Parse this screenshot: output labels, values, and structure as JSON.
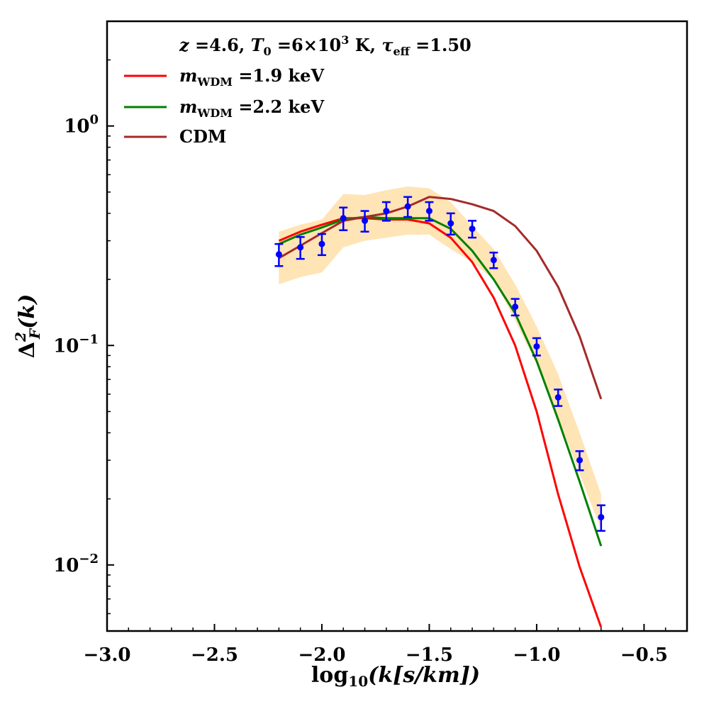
{
  "chart_data": {
    "type": "line",
    "title": "",
    "xlabel": {
      "main": "log",
      "sub": "10",
      "rest": "(k[s/km])"
    },
    "ylabel": {
      "main": "Δ",
      "sup": "2",
      "sub": "F",
      "rest": "(k)"
    },
    "xlim": [
      -3.0,
      -0.3
    ],
    "ylim": [
      0.005,
      3.0
    ],
    "yscale": "log",
    "x_ticks": [
      {
        "value": -3.0,
        "label": "−3.0"
      },
      {
        "value": -2.5,
        "label": "−2.5"
      },
      {
        "value": -2.0,
        "label": "−2.0"
      },
      {
        "value": -1.5,
        "label": "−1.5"
      },
      {
        "value": -1.0,
        "label": "−1.0"
      },
      {
        "value": -0.5,
        "label": "−0.5"
      }
    ],
    "y_ticks": [
      {
        "value": 0.01,
        "base": "10",
        "exp": "−2"
      },
      {
        "value": 0.1,
        "base": "10",
        "exp": "−1"
      },
      {
        "value": 1.0,
        "base": "10",
        "exp": "0"
      }
    ],
    "legend": {
      "position": "top-left",
      "header": {
        "parts": [
          "z",
          " =4.6, ",
          "T",
          "0",
          " =6×10",
          "3",
          " K, ",
          "τ",
          "eff",
          " =1.50"
        ]
      },
      "entries": [
        {
          "series": 0,
          "label_main": "m",
          "label_sub": "WDM",
          "label_rest": " =1.9 keV"
        },
        {
          "series": 1,
          "label_main": "m",
          "label_sub": "WDM",
          "label_rest": " =2.2 keV"
        },
        {
          "series": 2,
          "label_main": "CDM",
          "label_sub": "",
          "label_rest": ""
        }
      ]
    },
    "band": {
      "name": "uncertainty band",
      "color": "#ffe4b5",
      "x": [
        -2.2,
        -2.1,
        -2.0,
        -1.9,
        -1.8,
        -1.7,
        -1.6,
        -1.5,
        -1.4,
        -1.3,
        -1.2,
        -1.1,
        -1.0,
        -0.9,
        -0.8,
        -0.7
      ],
      "lower": [
        0.19,
        0.205,
        0.215,
        0.28,
        0.3,
        0.31,
        0.32,
        0.32,
        0.275,
        0.24,
        0.2,
        0.13,
        0.082,
        0.047,
        0.026,
        0.0145
      ],
      "upper": [
        0.33,
        0.355,
        0.375,
        0.49,
        0.485,
        0.51,
        0.53,
        0.52,
        0.45,
        0.35,
        0.275,
        0.19,
        0.122,
        0.074,
        0.04,
        0.021
      ]
    },
    "series": [
      {
        "name": "m_WDM = 1.9 keV",
        "color": "#ff0000",
        "x": [
          -2.2,
          -2.1,
          -2.0,
          -1.9,
          -1.8,
          -1.7,
          -1.6,
          -1.5,
          -1.4,
          -1.3,
          -1.2,
          -1.1,
          -1.0,
          -0.9,
          -0.8,
          -0.7
        ],
        "values": [
          0.3,
          0.33,
          0.355,
          0.38,
          0.38,
          0.375,
          0.375,
          0.36,
          0.31,
          0.24,
          0.165,
          0.1,
          0.05,
          0.021,
          0.0098,
          0.0052
        ]
      },
      {
        "name": "m_WDM = 2.2 keV",
        "color": "#008000",
        "x": [
          -2.2,
          -2.1,
          -2.0,
          -1.9,
          -1.8,
          -1.7,
          -1.6,
          -1.5,
          -1.4,
          -1.3,
          -1.2,
          -1.1,
          -1.0,
          -0.9,
          -0.8,
          -0.7
        ],
        "values": [
          0.29,
          0.32,
          0.345,
          0.375,
          0.385,
          0.38,
          0.38,
          0.38,
          0.34,
          0.27,
          0.2,
          0.14,
          0.085,
          0.046,
          0.024,
          0.0122
        ]
      },
      {
        "name": "CDM",
        "color": "#a52a2a",
        "x": [
          -2.2,
          -2.1,
          -2.0,
          -1.9,
          -1.8,
          -1.7,
          -1.6,
          -1.5,
          -1.4,
          -1.3,
          -1.2,
          -1.1,
          -1.0,
          -0.9,
          -0.8,
          -0.7
        ],
        "values": [
          0.25,
          0.285,
          0.325,
          0.37,
          0.385,
          0.4,
          0.43,
          0.475,
          0.465,
          0.44,
          0.41,
          0.35,
          0.27,
          0.185,
          0.11,
          0.057
        ]
      }
    ],
    "data_points": {
      "name": "measurements",
      "color": "#0000ff",
      "x": [
        -2.2,
        -2.1,
        -2.0,
        -1.9,
        -1.8,
        -1.7,
        -1.6,
        -1.5,
        -1.4,
        -1.3,
        -1.2,
        -1.1,
        -1.0,
        -0.9,
        -0.8,
        -0.7
      ],
      "y": [
        0.26,
        0.28,
        0.29,
        0.38,
        0.37,
        0.41,
        0.43,
        0.41,
        0.36,
        0.34,
        0.245,
        0.15,
        0.099,
        0.058,
        0.03,
        0.0165
      ],
      "y_err": [
        0.03,
        0.032,
        0.032,
        0.045,
        0.04,
        0.04,
        0.045,
        0.04,
        0.04,
        0.03,
        0.02,
        0.013,
        0.009,
        0.005,
        0.003,
        0.0022
      ]
    }
  }
}
